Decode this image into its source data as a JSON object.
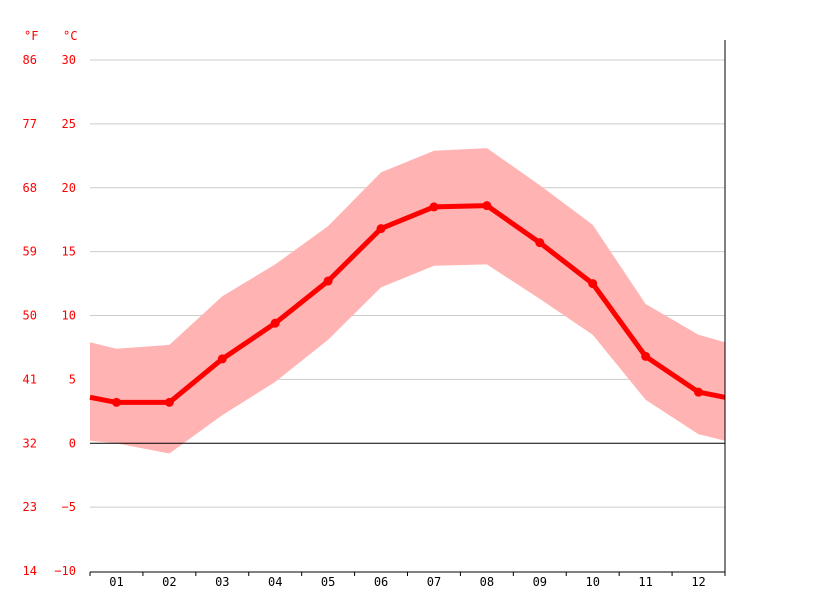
{
  "chart_data": {
    "type": "line",
    "title": "",
    "xlabel": "",
    "ylabel": "",
    "unit_labels": {
      "fahrenheit": "°F",
      "celsius": "°C"
    },
    "categories": [
      "01",
      "02",
      "03",
      "04",
      "05",
      "06",
      "07",
      "08",
      "09",
      "10",
      "11",
      "12"
    ],
    "series": [
      {
        "role": "mean",
        "values": [
          3.2,
          3.2,
          6.6,
          9.4,
          12.7,
          16.8,
          18.5,
          18.6,
          15.7,
          12.5,
          6.8,
          4.0
        ]
      },
      {
        "role": "max",
        "values": [
          7.4,
          7.7,
          11.5,
          14.0,
          17.0,
          21.2,
          22.9,
          23.1,
          20.2,
          17.1,
          10.9,
          8.5
        ]
      },
      {
        "role": "min",
        "values": [
          0.0,
          -0.8,
          2.2,
          4.8,
          8.1,
          12.2,
          13.9,
          14.0,
          11.3,
          8.5,
          3.4,
          0.7
        ]
      }
    ],
    "edge_values": {
      "mean": {
        "start": 3.6,
        "end": 3.6
      },
      "max": {
        "start": 7.9,
        "end": 7.9
      },
      "min": {
        "start": 0.2,
        "end": 0.2
      }
    },
    "ylim": [
      -10,
      30
    ],
    "y_ticks_celsius": [
      "30",
      "25",
      "20",
      "15",
      "10",
      "5",
      "0",
      "−5",
      "−10"
    ],
    "y_ticks_fahrenheit": [
      "86",
      "77",
      "68",
      "59",
      "50",
      "41",
      "32",
      "23",
      "14"
    ],
    "grid": true,
    "colors": {
      "line": "#ff0000",
      "band": "#ffb3b3",
      "grid": "#cccccc",
      "zero": "#000000",
      "axis_text": "#ff0000",
      "month_text": "#000000"
    }
  }
}
